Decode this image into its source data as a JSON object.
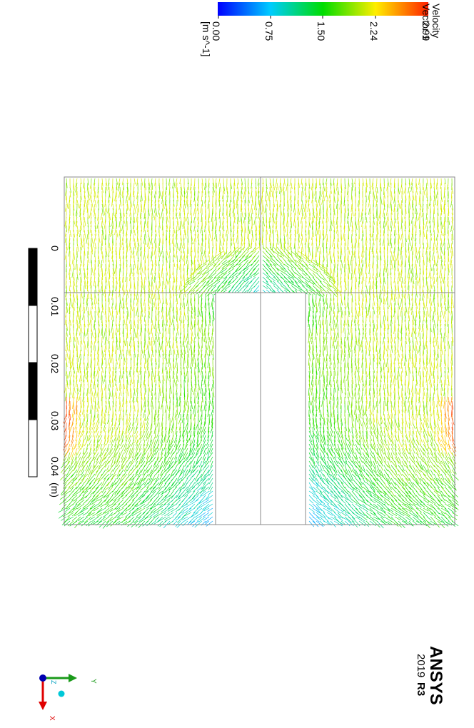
{
  "legend": {
    "title": "Velocity",
    "subtitle": "Vector 1",
    "labels": [
      "2.99",
      "2.24",
      "1.50",
      "0.75",
      "0.00"
    ],
    "unit": "[m s^-1]"
  },
  "scale_bar": {
    "labels": [
      "0",
      "0.01",
      "0.02",
      "0.03",
      "0.04"
    ],
    "unit": "(m)"
  },
  "logo": {
    "name": "ANSYS",
    "year": "2019",
    "release": "R3"
  },
  "triad": {
    "y": "Y",
    "z": "Z",
    "x": "X"
  }
}
